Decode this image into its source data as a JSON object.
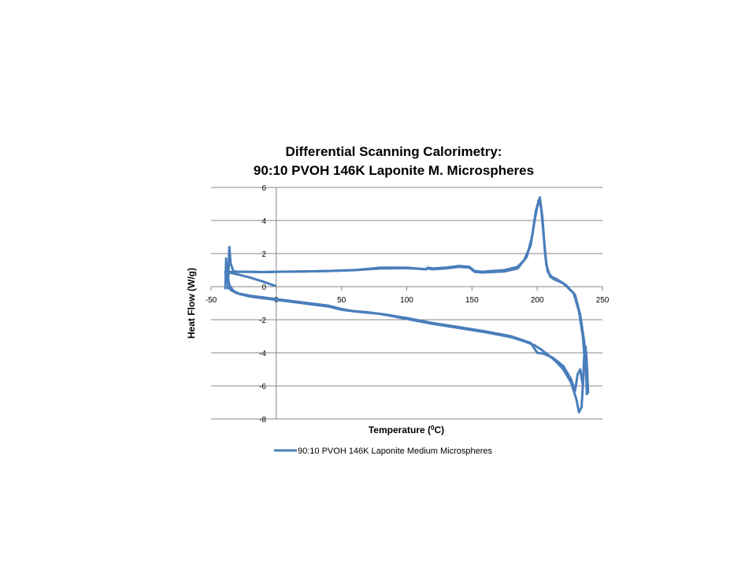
{
  "chart_data": {
    "type": "line",
    "title": [
      "Differential Scanning Calorimetry:",
      "90:10 PVOH 146K Laponite M. Microspheres"
    ],
    "xlabel": "Temperature (⁰C)",
    "ylabel": "Heat Flow (W/g)",
    "xlim": [
      -50,
      250
    ],
    "ylim": [
      -8,
      6
    ],
    "xticks": [
      "-50",
      "0",
      "50",
      "100",
      "150",
      "200",
      "250"
    ],
    "yticks": [
      "6",
      "4",
      "2",
      "0",
      "-2",
      "-4",
      "-6",
      "-8"
    ],
    "grid": true,
    "legend_position": "bottom",
    "series_color": "#4a7ebb",
    "series": [
      {
        "name": "90:10 PVOH 146K Laponite Medium Microspheres",
        "segments": [
          {
            "label": "cooling-1",
            "x": [
              -1,
              -10,
              -20,
              -30,
              -36,
              -38,
              -39
            ],
            "y": [
              0.05,
              0.3,
              0.55,
              0.75,
              0.85,
              0.9,
              0.9
            ]
          },
          {
            "label": "heating-1",
            "x": [
              -39,
              -38.5,
              -38,
              -37,
              -35,
              -30,
              -20,
              -10,
              0,
              20,
              40,
              60,
              80,
              100,
              115,
              116,
              120,
              130,
              140,
              148,
              152,
              158,
              165,
              175,
              185,
              190,
              195,
              198,
              201,
              203,
              205,
              207,
              210,
              213,
              220,
              228,
              232,
              235,
              237
            ],
            "y": [
              -0.1,
              1.7,
              1.0,
              0.9,
              0.88,
              0.9,
              0.9,
              0.88,
              0.9,
              0.92,
              0.95,
              1.0,
              1.15,
              1.15,
              1.05,
              1.15,
              1.1,
              1.15,
              1.25,
              1.2,
              0.95,
              0.9,
              0.95,
              1.0,
              1.2,
              1.6,
              2.5,
              4.0,
              5.2,
              4.8,
              3.0,
              1.3,
              0.6,
              0.45,
              0.2,
              -0.4,
              -1.5,
              -3.0,
              -5.0
            ]
          },
          {
            "label": "heating-2",
            "x": [
              -37,
              -36,
              -35,
              -33,
              -30,
              -20,
              -10,
              0,
              20,
              40,
              60,
              80,
              100,
              115,
              116,
              120,
              130,
              140,
              148,
              152,
              158,
              165,
              175,
              185,
              192,
              196,
              199,
              202,
              204,
              206,
              208,
              211,
              215,
              222,
              229,
              233,
              236,
              238
            ],
            "y": [
              -0.1,
              2.4,
              1.4,
              0.95,
              0.9,
              0.9,
              0.88,
              0.9,
              0.92,
              0.95,
              1.0,
              1.1,
              1.12,
              1.05,
              1.1,
              1.05,
              1.1,
              1.2,
              1.15,
              0.9,
              0.85,
              0.88,
              0.92,
              1.1,
              1.8,
              3.0,
              4.6,
              5.4,
              4.2,
              2.0,
              0.9,
              0.6,
              0.45,
              0.1,
              -0.5,
              -1.7,
              -3.3,
              -5.2
            ]
          },
          {
            "label": "cooling-2",
            "x": [
              -39,
              -37,
              -35,
              -30,
              -20,
              -10,
              0,
              20,
              40,
              50,
              60,
              80,
              100,
              120,
              140,
              160,
              180,
              190,
              198,
              203,
              208,
              214,
              220,
              226,
              230,
              232,
              234,
              235,
              236,
              237,
              238,
              239
            ],
            "y": [
              0.8,
              0.2,
              -0.2,
              -0.4,
              -0.55,
              -0.65,
              -0.75,
              -0.95,
              -1.15,
              -1.35,
              -1.5,
              -1.65,
              -1.95,
              -2.25,
              -2.5,
              -2.75,
              -3.05,
              -3.3,
              -3.55,
              -3.8,
              -4.1,
              -4.5,
              -5.0,
              -5.8,
              -6.8,
              -7.6,
              -7.3,
              -6.0,
              -4.8,
              -3.6,
              -4.5,
              -6.4
            ]
          },
          {
            "label": "cooling-3",
            "x": [
              -38,
              -36,
              -33,
              -28,
              -20,
              -10,
              0,
              20,
              40,
              50,
              55,
              70,
              85,
              100,
              120,
              140,
              160,
              180,
              195,
              200,
              205,
              212,
              220,
              226,
              229,
              231,
              233,
              235,
              236,
              237,
              238
            ],
            "y": [
              0.9,
              0.1,
              -0.25,
              -0.45,
              -0.6,
              -0.7,
              -0.8,
              -1.0,
              -1.2,
              -1.4,
              -1.45,
              -1.55,
              -1.7,
              -1.9,
              -2.2,
              -2.45,
              -2.7,
              -3.0,
              -3.4,
              -4.0,
              -4.05,
              -4.3,
              -4.8,
              -5.6,
              -6.3,
              -5.3,
              -5.0,
              -6.0,
              -4.2,
              -3.7,
              -6.5
            ]
          }
        ]
      }
    ]
  }
}
